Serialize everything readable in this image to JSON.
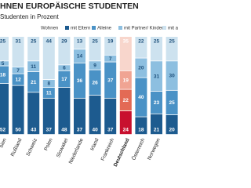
{
  "chart_data": {
    "type": "stacked_bar",
    "title": "HNEN EUROPÄISCHE STUDENTEN",
    "subtitle": "Studenten in Prozent",
    "legend_title": "Wohnen",
    "categories": [
      "bien",
      "Rußland",
      "Schweiz",
      "Polen",
      "Slowakei",
      "Niederlande",
      "Irland",
      "Frankreich",
      "Deutschland",
      "Österreich",
      "Norwegen",
      null
    ],
    "series": [
      {
        "name": "mit Eltern",
        "color": "#1d5b8f",
        "values": [
          52,
          50,
          43,
          37,
          48,
          37,
          40,
          37,
          24,
          18,
          21,
          20
        ]
      },
      {
        "name": "Alleine",
        "color": "#4a92c6",
        "values": [
          18,
          12,
          21,
          11,
          17,
          36,
          26,
          37,
          22,
          40,
          23,
          25
        ]
      },
      {
        "name": "mit Partner/ Kindern",
        "color": "#8dbfe0",
        "values": [
          5,
          7,
          11,
          8,
          6,
          14,
          9,
          7,
          19,
          20,
          31,
          30
        ]
      },
      {
        "name": "mit ander",
        "color": "#cde2ef",
        "values": [
          25,
          31,
          25,
          44,
          29,
          13,
          25,
          19,
          35,
          22,
          25,
          25
        ]
      }
    ],
    "highlight_category": "Deutschland",
    "highlight_colors": [
      "#c8102e",
      "#e36a55",
      "#f0a493",
      "#f8d6cc"
    ],
    "ylim": [
      0,
      100
    ]
  }
}
